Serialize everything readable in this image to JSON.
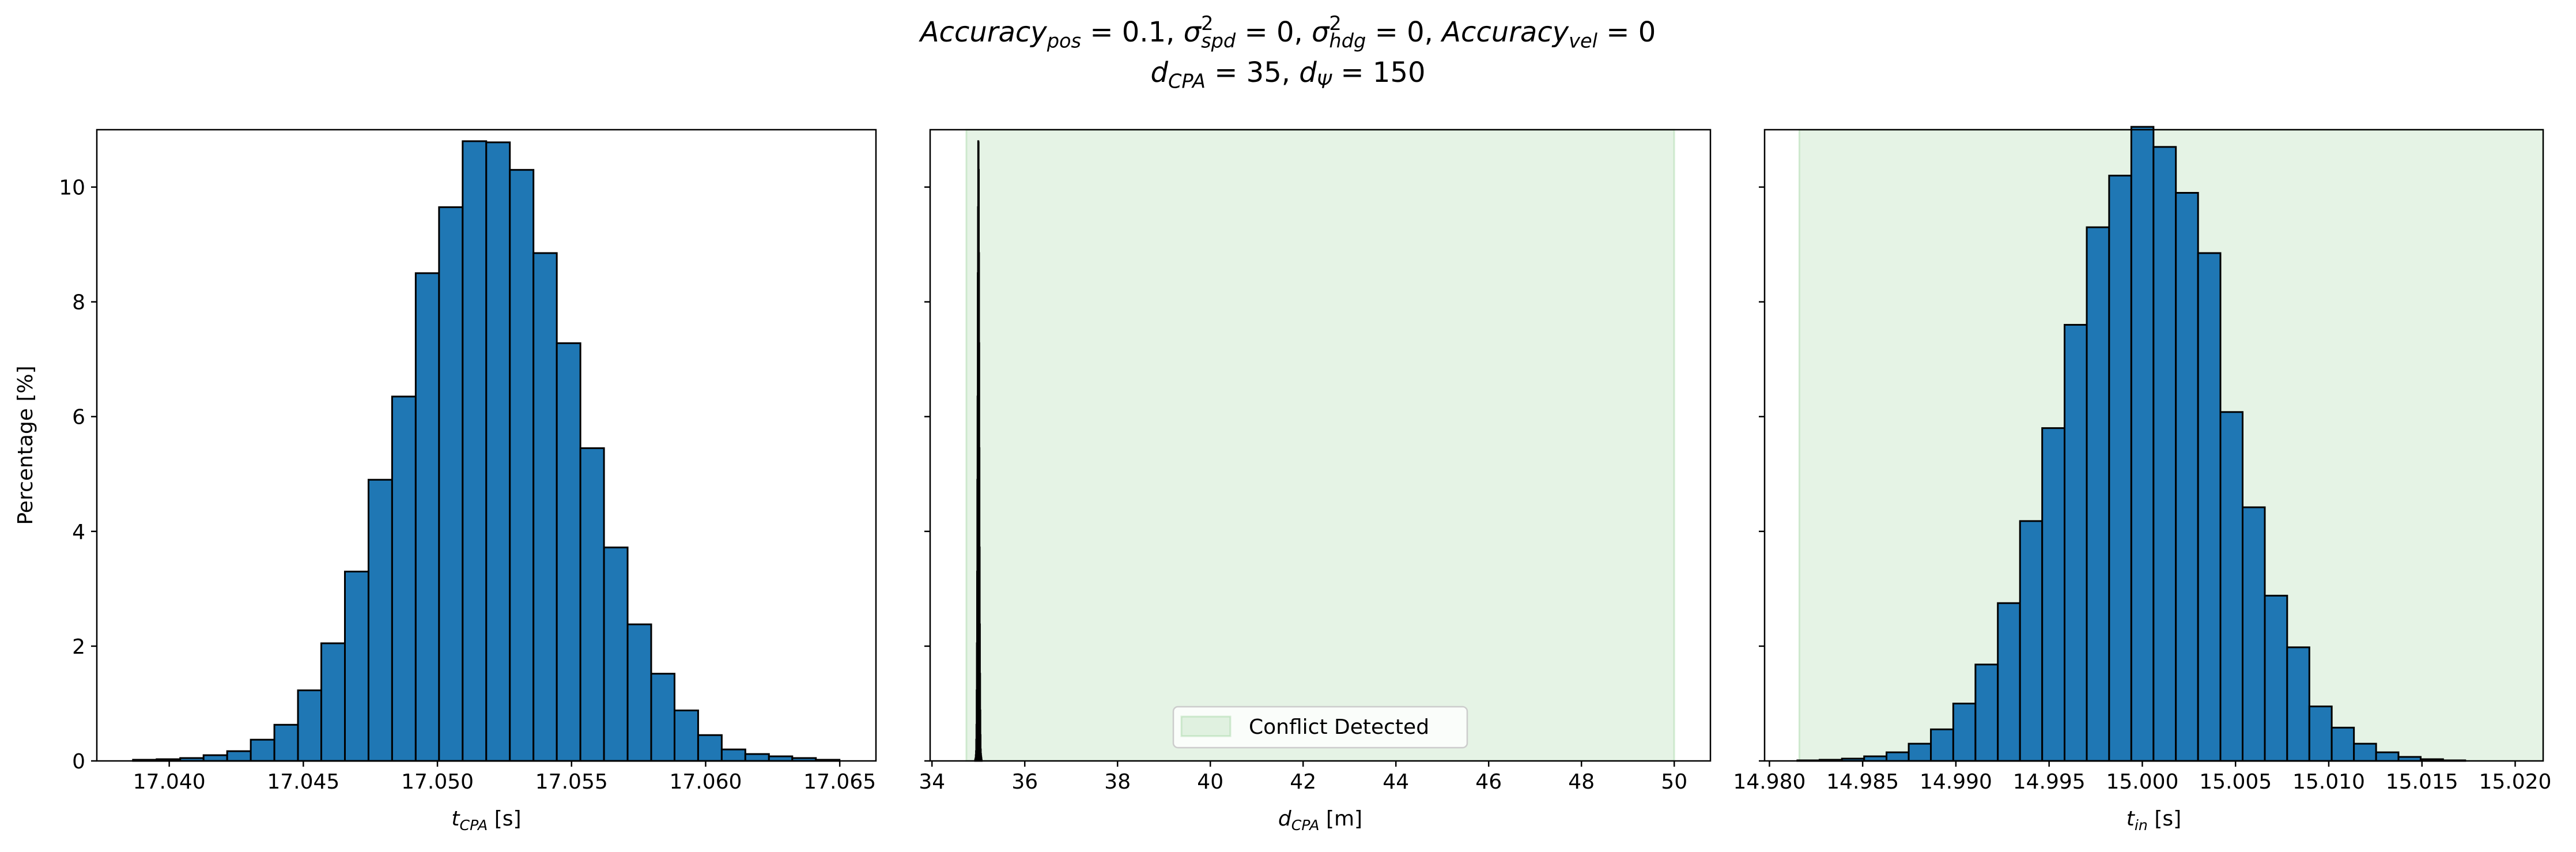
{
  "title": [
    [
      {
        "text": "Accuracy",
        "style": "italic"
      },
      {
        "text": "pos",
        "style": "sub"
      },
      {
        "text": " = 0.1, "
      },
      {
        "text": "σ",
        "style": "italic"
      },
      {
        "text": "2",
        "style": "sup"
      },
      {
        "text": "spd",
        "style": "sub-under-sup"
      },
      {
        "text": " = 0, "
      },
      {
        "text": "σ",
        "style": "italic"
      },
      {
        "text": "2",
        "style": "sup"
      },
      {
        "text": "hdg",
        "style": "sub-under-sup"
      },
      {
        "text": " = 0, "
      },
      {
        "text": "Accuracy",
        "style": "italic"
      },
      {
        "text": "vel",
        "style": "sub"
      },
      {
        "text": " = 0"
      }
    ],
    [
      {
        "text": "d",
        "style": "italic"
      },
      {
        "text": "CPA",
        "style": "sub"
      },
      {
        "text": " = 35, "
      },
      {
        "text": "d",
        "style": "italic"
      },
      {
        "text": "Ψ",
        "style": "sub"
      },
      {
        "text": " = 150"
      }
    ]
  ],
  "chart_data": [
    {
      "type": "histogram",
      "color": "#1f77b4",
      "edgecolor": "#000000",
      "xlabel": [
        {
          "text": "t",
          "style": "italic"
        },
        {
          "text": "CPA",
          "style": "sub"
        },
        {
          "text": " [s]"
        }
      ],
      "ylabel": "Percentage [%]",
      "bins": [
        17.03865,
        17.03953,
        17.04041,
        17.04128,
        17.04216,
        17.04304,
        17.04392,
        17.0448,
        17.04567,
        17.04655,
        17.04743,
        17.04831,
        17.04919,
        17.05006,
        17.05094,
        17.05182,
        17.0527,
        17.05358,
        17.05445,
        17.05533,
        17.05621,
        17.05709,
        17.05797,
        17.05884,
        17.05972,
        17.0606,
        17.06148,
        17.06236,
        17.06323,
        17.06411,
        17.06499
      ],
      "values": [
        0.02,
        0.03,
        0.05,
        0.1,
        0.17,
        0.37,
        0.63,
        1.23,
        2.05,
        3.3,
        4.9,
        6.35,
        8.5,
        9.65,
        10.8,
        10.78,
        10.3,
        8.85,
        7.28,
        5.45,
        3.72,
        2.38,
        1.52,
        0.88,
        0.45,
        0.2,
        0.12,
        0.08,
        0.05,
        0.02
      ],
      "xlim": [
        17.0373,
        17.06635
      ],
      "xticks": [
        {
          "value": 17.04,
          "label": "17.040"
        },
        17.045,
        {
          "value": 17.05,
          "label": "17.050"
        },
        17.055,
        {
          "value": 17.06,
          "label": "17.060"
        },
        17.065
      ],
      "ylim": [
        0,
        11
      ],
      "yticks": [
        0,
        2,
        4,
        6,
        8,
        10
      ],
      "show_ytick_labels": true
    },
    {
      "type": "histogram",
      "color": "#1f77b4",
      "edgecolor": "#000000",
      "xlabel": [
        {
          "text": "d",
          "style": "italic"
        },
        {
          "text": "CPA",
          "style": "sub"
        },
        {
          "text": " [m]"
        }
      ],
      "bins": [
        34.93,
        34.9347,
        34.9394,
        34.9441,
        34.9488,
        34.9535,
        34.9582,
        34.9629,
        34.9676,
        34.9723,
        34.977,
        34.9817,
        34.9864,
        34.9911,
        34.9958,
        35.0005,
        35.0052,
        35.0099,
        35.0146,
        35.0193,
        35.024,
        35.0287,
        35.0334,
        35.0381,
        35.0428,
        35.0475,
        35.0522,
        35.0569,
        35.0616,
        35.0663,
        35.071
      ],
      "values": [
        0.02,
        0.03,
        0.05,
        0.1,
        0.17,
        0.37,
        0.63,
        1.23,
        2.05,
        3.3,
        4.9,
        6.35,
        8.5,
        9.65,
        10.8,
        10.78,
        10.3,
        8.85,
        7.28,
        5.45,
        3.72,
        2.38,
        1.52,
        0.88,
        0.45,
        0.2,
        0.12,
        0.08,
        0.05,
        0.02
      ],
      "span": {
        "name": "Conflict Detected",
        "x": [
          34.74,
          50
        ],
        "color": "#2ca02c",
        "alpha": 0.12
      },
      "legend": "lower center",
      "xlim": [
        33.96,
        50.78
      ],
      "xticks": [
        34,
        36,
        38,
        40,
        42,
        44,
        46,
        48,
        50
      ],
      "ylim": [
        0,
        11
      ],
      "yticks": [
        0,
        2,
        4,
        6,
        8,
        10
      ],
      "show_ytick_labels": false
    },
    {
      "type": "histogram",
      "color": "#1f77b4",
      "edgecolor": "#000000",
      "xlabel": [
        {
          "text": "t",
          "style": "italic"
        },
        {
          "text": "in",
          "style": "sub"
        },
        {
          "text": " [s]"
        }
      ],
      "bins": [
        14.9815,
        14.98269,
        14.98389,
        14.98508,
        14.98628,
        14.98747,
        14.98866,
        14.98986,
        14.99105,
        14.99225,
        14.99344,
        14.99463,
        14.99583,
        14.99702,
        14.99822,
        14.99941,
        15.0006,
        15.0018,
        15.00299,
        15.00419,
        15.00538,
        15.00657,
        15.00777,
        15.00896,
        15.01016,
        15.01135,
        15.01254,
        15.01374,
        15.01493,
        15.01613,
        15.01732
      ],
      "values": [
        0.01,
        0.02,
        0.04,
        0.08,
        0.15,
        0.3,
        0.55,
        1.0,
        1.68,
        2.75,
        4.18,
        5.8,
        7.6,
        9.3,
        10.2,
        11.05,
        10.7,
        9.9,
        8.85,
        6.08,
        4.42,
        2.88,
        1.98,
        0.95,
        0.58,
        0.3,
        0.15,
        0.07,
        0.03,
        0.01
      ],
      "span": {
        "x": [
          14.9816,
          15.0215
        ],
        "color": "#2ca02c",
        "alpha": 0.12
      },
      "xlim": [
        14.97974,
        15.0215
      ],
      "xticks": [
        {
          "value": 14.98,
          "label": "14.980"
        },
        14.985,
        {
          "value": 14.99,
          "label": "14.990"
        },
        14.995,
        {
          "value": 15,
          "label": "15.000"
        },
        15.005,
        {
          "value": 15.01,
          "label": "15.010"
        },
        15.015,
        {
          "value": 15.02,
          "label": "15.020"
        }
      ],
      "ylim": [
        0,
        11
      ],
      "yticks": [
        0,
        2,
        4,
        6,
        8,
        10
      ],
      "show_ytick_labels": false
    }
  ]
}
